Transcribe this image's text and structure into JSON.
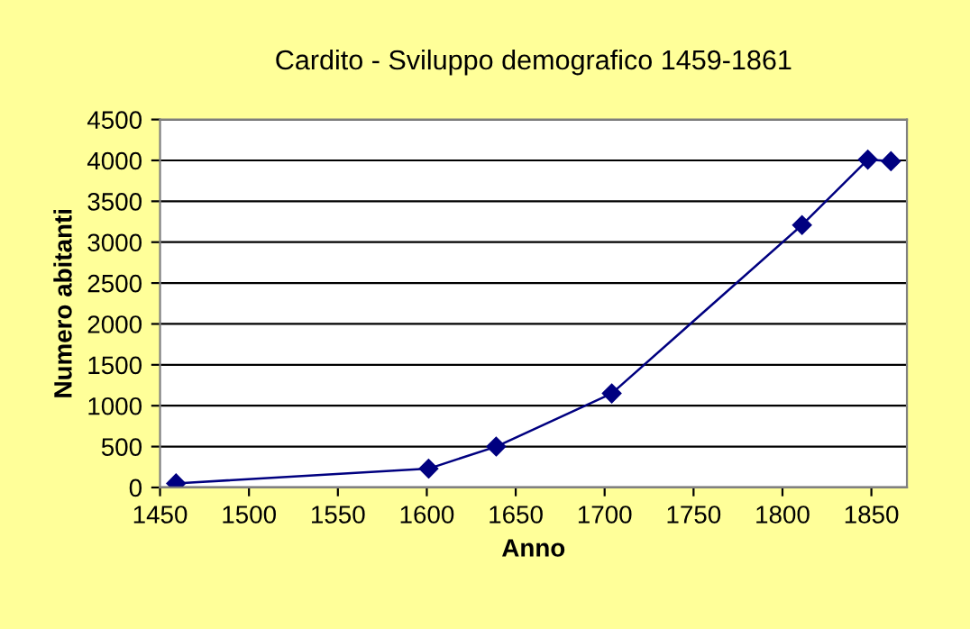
{
  "chart_data": {
    "type": "line",
    "title": "Cardito - Sviluppo demografico 1459-1861",
    "xlabel": "Anno",
    "ylabel": "Numero abitanti",
    "x": [
      1459,
      1601,
      1639,
      1704,
      1811,
      1848,
      1861
    ],
    "series": [
      {
        "color": "#000080",
        "values": [
          50,
          230,
          500,
          1150,
          3210,
          4010,
          3990
        ]
      }
    ],
    "xlim": [
      1450,
      1870
    ],
    "xticks": [
      1450,
      1500,
      1550,
      1600,
      1650,
      1700,
      1750,
      1800,
      1850
    ],
    "ylim": [
      0,
      4500
    ],
    "yticks": [
      0,
      500,
      1000,
      1500,
      2000,
      2500,
      3000,
      3500,
      4000,
      4500
    ],
    "grid": "y",
    "marker": "diamond",
    "line_style": "solid"
  }
}
